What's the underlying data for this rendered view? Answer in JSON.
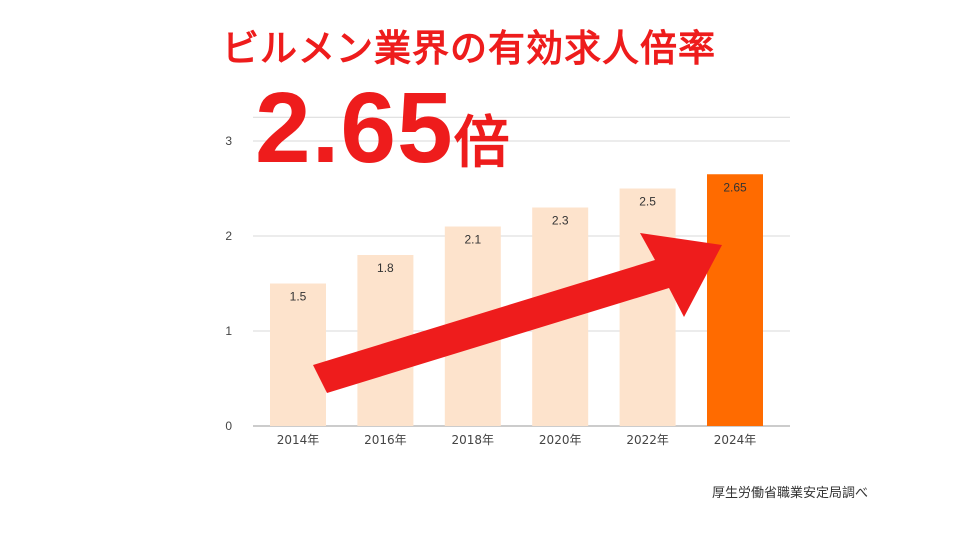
{
  "headline": "ビルメン業界の有効求人倍率",
  "highlight": {
    "value": "2.65",
    "unit": "倍"
  },
  "source": "厚生労働省職業安定局調べ",
  "colors": {
    "headline": "#ee1c1c",
    "bar_default": "#fde3cc",
    "bar_highlight": "#ff6b00",
    "arrow": "#ee1c1c",
    "gridline": "#d9d9d9"
  },
  "chart_data": {
    "type": "bar",
    "categories": [
      "2014年",
      "2016年",
      "2018年",
      "2020年",
      "2022年",
      "2024年"
    ],
    "values": [
      1.5,
      1.8,
      2.1,
      2.3,
      2.5,
      2.65
    ],
    "value_labels": [
      "1.5",
      "1.8",
      "2.1",
      "2.3",
      "2.5",
      "2.65"
    ],
    "y_ticks": [
      0,
      1,
      2,
      3
    ],
    "y_tick_labels": [
      "0",
      "1",
      "2",
      "3"
    ],
    "ylim": [
      0,
      3.2
    ],
    "grid": true,
    "highlight_index": 5,
    "annotation": "upward-trend-arrow"
  }
}
